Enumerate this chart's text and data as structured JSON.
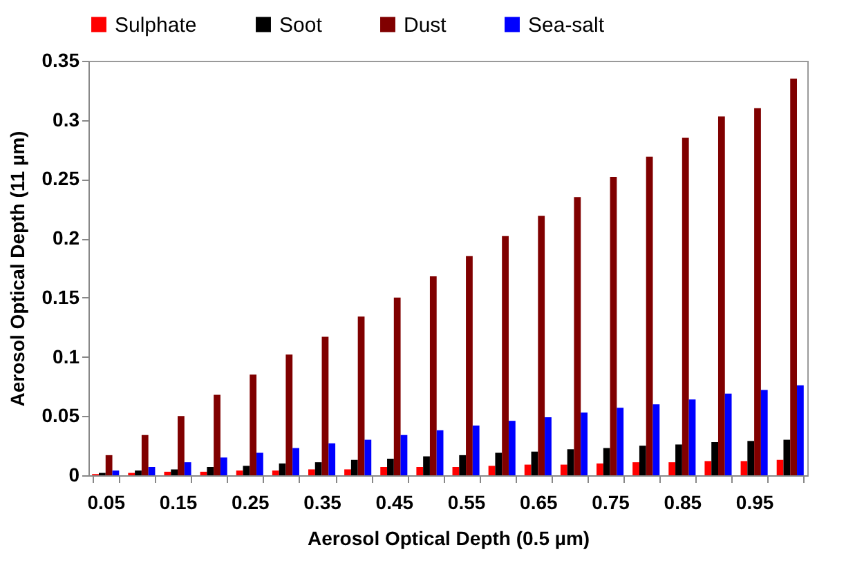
{
  "chart_data": {
    "type": "bar",
    "xlabel": "Aerosol Optical Depth (0.5 µm)",
    "ylabel": "Aerosol Optical Depth (11 µm)",
    "categories": [
      "0.05",
      null,
      "0.15",
      null,
      "0.25",
      null,
      "0.35",
      null,
      "0.45",
      null,
      "0.55",
      null,
      "0.65",
      null,
      "0.75",
      null,
      "0.85",
      null,
      "0.95",
      null
    ],
    "series": [
      {
        "name": "Sulphate",
        "color": "#ff0000",
        "values": [
          0.001,
          0.002,
          0.003,
          0.003,
          0.004,
          0.004,
          0.005,
          0.005,
          0.007,
          0.007,
          0.007,
          0.008,
          0.009,
          0.009,
          0.01,
          0.011,
          0.011,
          0.012,
          0.012,
          0.013
        ]
      },
      {
        "name": "Soot",
        "color": "#000000",
        "values": [
          0.002,
          0.004,
          0.005,
          0.007,
          0.008,
          0.01,
          0.011,
          0.013,
          0.014,
          0.016,
          0.017,
          0.019,
          0.02,
          0.022,
          0.023,
          0.025,
          0.026,
          0.028,
          0.029,
          0.03
        ]
      },
      {
        "name": "Dust",
        "color": "#800000",
        "values": [
          0.017,
          0.034,
          0.05,
          0.068,
          0.085,
          0.102,
          0.117,
          0.134,
          0.15,
          0.168,
          0.185,
          0.202,
          0.219,
          0.235,
          0.252,
          0.269,
          0.285,
          0.303,
          0.31,
          0.335
        ]
      },
      {
        "name": "Sea-salt",
        "color": "#0000ff",
        "values": [
          0.004,
          0.007,
          0.011,
          0.015,
          0.019,
          0.023,
          0.027,
          0.03,
          0.034,
          0.038,
          0.042,
          0.046,
          0.049,
          0.053,
          0.057,
          0.06,
          0.064,
          0.069,
          0.072,
          0.076
        ]
      }
    ],
    "ylim": [
      0,
      0.35
    ],
    "yticks": [
      0,
      0.05,
      0.1,
      0.15,
      0.2,
      0.25,
      0.3,
      0.35
    ],
    "grid": false,
    "legend": "top"
  }
}
